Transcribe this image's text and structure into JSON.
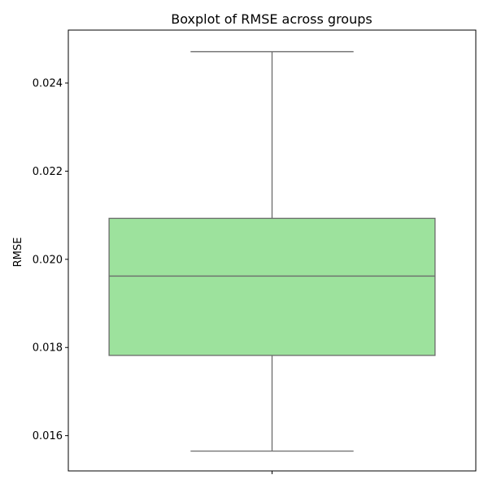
{
  "chart_data": {
    "type": "box",
    "title": "Boxplot of RMSE across groups",
    "xlabel": "",
    "ylabel": "RMSE",
    "ylim": [
      0.0152,
      0.0252
    ],
    "yticks": [
      0.016,
      0.018,
      0.02,
      0.022,
      0.024
    ],
    "ytick_labels": [
      "0.016",
      "0.018",
      "0.020",
      "0.022",
      "0.024"
    ],
    "boxes": [
      {
        "whisker_low": 0.01565,
        "q1": 0.01782,
        "median": 0.01962,
        "q3": 0.02093,
        "whisker_high": 0.02471
      }
    ],
    "grid": false,
    "colors": {
      "box_fill": "#9de29d",
      "box_edge": "#6b6b6b",
      "axis": "#000000"
    }
  }
}
